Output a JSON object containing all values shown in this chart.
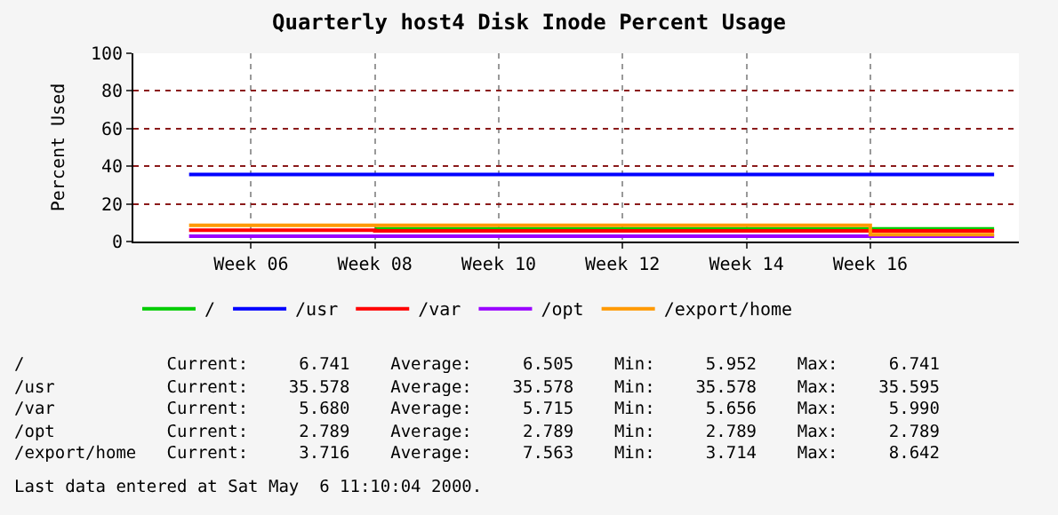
{
  "chart_data": {
    "type": "step",
    "title": "Quarterly host4 Disk Inode Percent Usage",
    "ylabel": "Percent Used",
    "categories": [
      null,
      "Week 06",
      null,
      "Week 08",
      null,
      "Week 10",
      null,
      "Week 12",
      null,
      "Week 14",
      null,
      "Week 16",
      null,
      null
    ],
    "ylim": [
      0,
      100
    ],
    "yticks": [
      0,
      20,
      40,
      60,
      80,
      100
    ],
    "series": [
      {
        "name": "/",
        "color": "#00cc00",
        "values": [
          null,
          null,
          null,
          6.7,
          6.7,
          6.7,
          6.7,
          6.7,
          6.7,
          6.7,
          6.7,
          6.7,
          6.7,
          6.7
        ]
      },
      {
        "name": "/usr",
        "color": "#0000ff",
        "values": [
          35.6,
          35.6,
          35.6,
          35.6,
          35.6,
          35.6,
          35.6,
          35.6,
          35.6,
          35.6,
          35.6,
          35.6,
          35.6,
          35.6
        ]
      },
      {
        "name": "/var",
        "color": "#ff0000",
        "values": [
          6.0,
          6.0,
          6.0,
          5.7,
          5.7,
          5.7,
          5.7,
          5.7,
          5.7,
          5.7,
          5.7,
          5.7,
          5.7,
          5.7
        ]
      },
      {
        "name": "/opt",
        "color": "#9900ff",
        "values": [
          2.8,
          2.8,
          2.8,
          2.8,
          2.8,
          2.8,
          2.8,
          2.8,
          2.8,
          2.8,
          2.8,
          2.8,
          2.8,
          2.8
        ]
      },
      {
        "name": "/export/home",
        "color": "#ff9900",
        "values": [
          8.6,
          8.6,
          8.6,
          8.6,
          8.6,
          8.6,
          8.6,
          8.6,
          8.6,
          8.6,
          8.6,
          3.7,
          3.7,
          3.7
        ]
      }
    ],
    "grid": true,
    "legend": "bottom",
    "line_style": "solid",
    "marker": "none",
    "annotations": [
      "/              Current:     6.741    Average:     6.505    Min:     5.952    Max:     6.741",
      "/usr           Current:    35.578    Average:    35.578    Min:    35.578    Max:    35.595",
      "/var           Current:     5.680    Average:     5.715    Min:     5.656    Max:     5.990",
      "/opt           Current:     2.789    Average:     2.789    Min:     2.789    Max:     2.789",
      "/export/home   Current:     3.716    Average:     7.563    Min:     3.714    Max:     8.642",
      "Last data entered at Sat May  6 11:10:04 2000."
    ]
  }
}
